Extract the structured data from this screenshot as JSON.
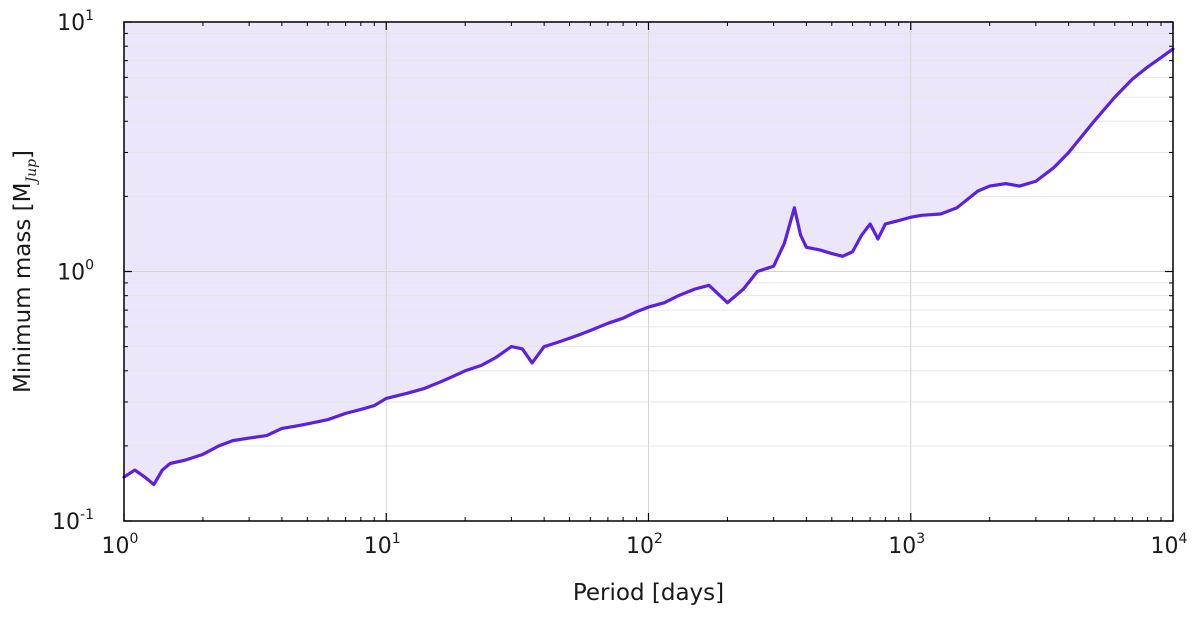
{
  "chart_data": {
    "type": "line",
    "xlabel": "Period [days]",
    "ylabel": {
      "main": "Minimum mass [M",
      "subscript": "Jup",
      "close": "]"
    },
    "xscale": "log",
    "yscale": "log",
    "xlim": [
      1,
      10000
    ],
    "ylim": [
      0.1,
      10
    ],
    "grid": true,
    "fill": "above",
    "colors": {
      "line": "#5b21e0",
      "fill": "#ece6fb",
      "grid": "#d4d4d4"
    },
    "xticks": [
      {
        "value": 1,
        "base": "10",
        "exp": "0"
      },
      {
        "value": 10,
        "base": "10",
        "exp": "1"
      },
      {
        "value": 100,
        "base": "10",
        "exp": "2"
      },
      {
        "value": 1000,
        "base": "10",
        "exp": "3"
      },
      {
        "value": 10000,
        "base": "10",
        "exp": "4"
      }
    ],
    "yticks": [
      {
        "value": 0.1,
        "label": "10",
        "exp": "-1"
      },
      {
        "value": 1,
        "label": "10",
        "exp": "0"
      },
      {
        "value": 10,
        "label": "10",
        "exp": "1"
      }
    ],
    "series": [
      {
        "x": [
          1.0,
          1.1,
          1.2,
          1.3,
          1.4,
          1.5,
          1.7,
          2.0,
          2.3,
          2.6,
          3.0,
          3.5,
          4.0,
          4.5,
          5.0,
          6.0,
          7.0,
          8.0,
          9.0,
          10,
          12,
          14,
          16,
          18,
          20,
          23,
          26,
          30,
          33,
          36,
          40,
          45,
          50,
          55,
          60,
          70,
          80,
          90,
          100,
          115,
          130,
          150,
          170,
          200,
          230,
          260,
          300,
          330,
          360,
          380,
          400,
          450,
          500,
          550,
          600,
          650,
          700,
          750,
          800,
          900,
          1000,
          1100,
          1300,
          1500,
          1800,
          2000,
          2300,
          2600,
          3000,
          3500,
          4000,
          5000,
          6000,
          7000,
          8000,
          9000,
          10000
        ],
        "y": [
          0.15,
          0.16,
          0.15,
          0.14,
          0.16,
          0.17,
          0.175,
          0.185,
          0.2,
          0.21,
          0.215,
          0.22,
          0.235,
          0.24,
          0.245,
          0.255,
          0.27,
          0.28,
          0.29,
          0.31,
          0.325,
          0.34,
          0.36,
          0.38,
          0.4,
          0.42,
          0.45,
          0.5,
          0.49,
          0.43,
          0.5,
          0.52,
          0.54,
          0.56,
          0.58,
          0.62,
          0.65,
          0.69,
          0.72,
          0.75,
          0.8,
          0.85,
          0.88,
          0.75,
          0.85,
          1.0,
          1.05,
          1.3,
          1.8,
          1.4,
          1.25,
          1.22,
          1.18,
          1.15,
          1.2,
          1.4,
          1.55,
          1.35,
          1.55,
          1.6,
          1.65,
          1.68,
          1.7,
          1.8,
          2.1,
          2.2,
          2.25,
          2.2,
          2.3,
          2.6,
          3.0,
          4.0,
          5.0,
          5.9,
          6.6,
          7.2,
          7.8
        ]
      }
    ]
  }
}
